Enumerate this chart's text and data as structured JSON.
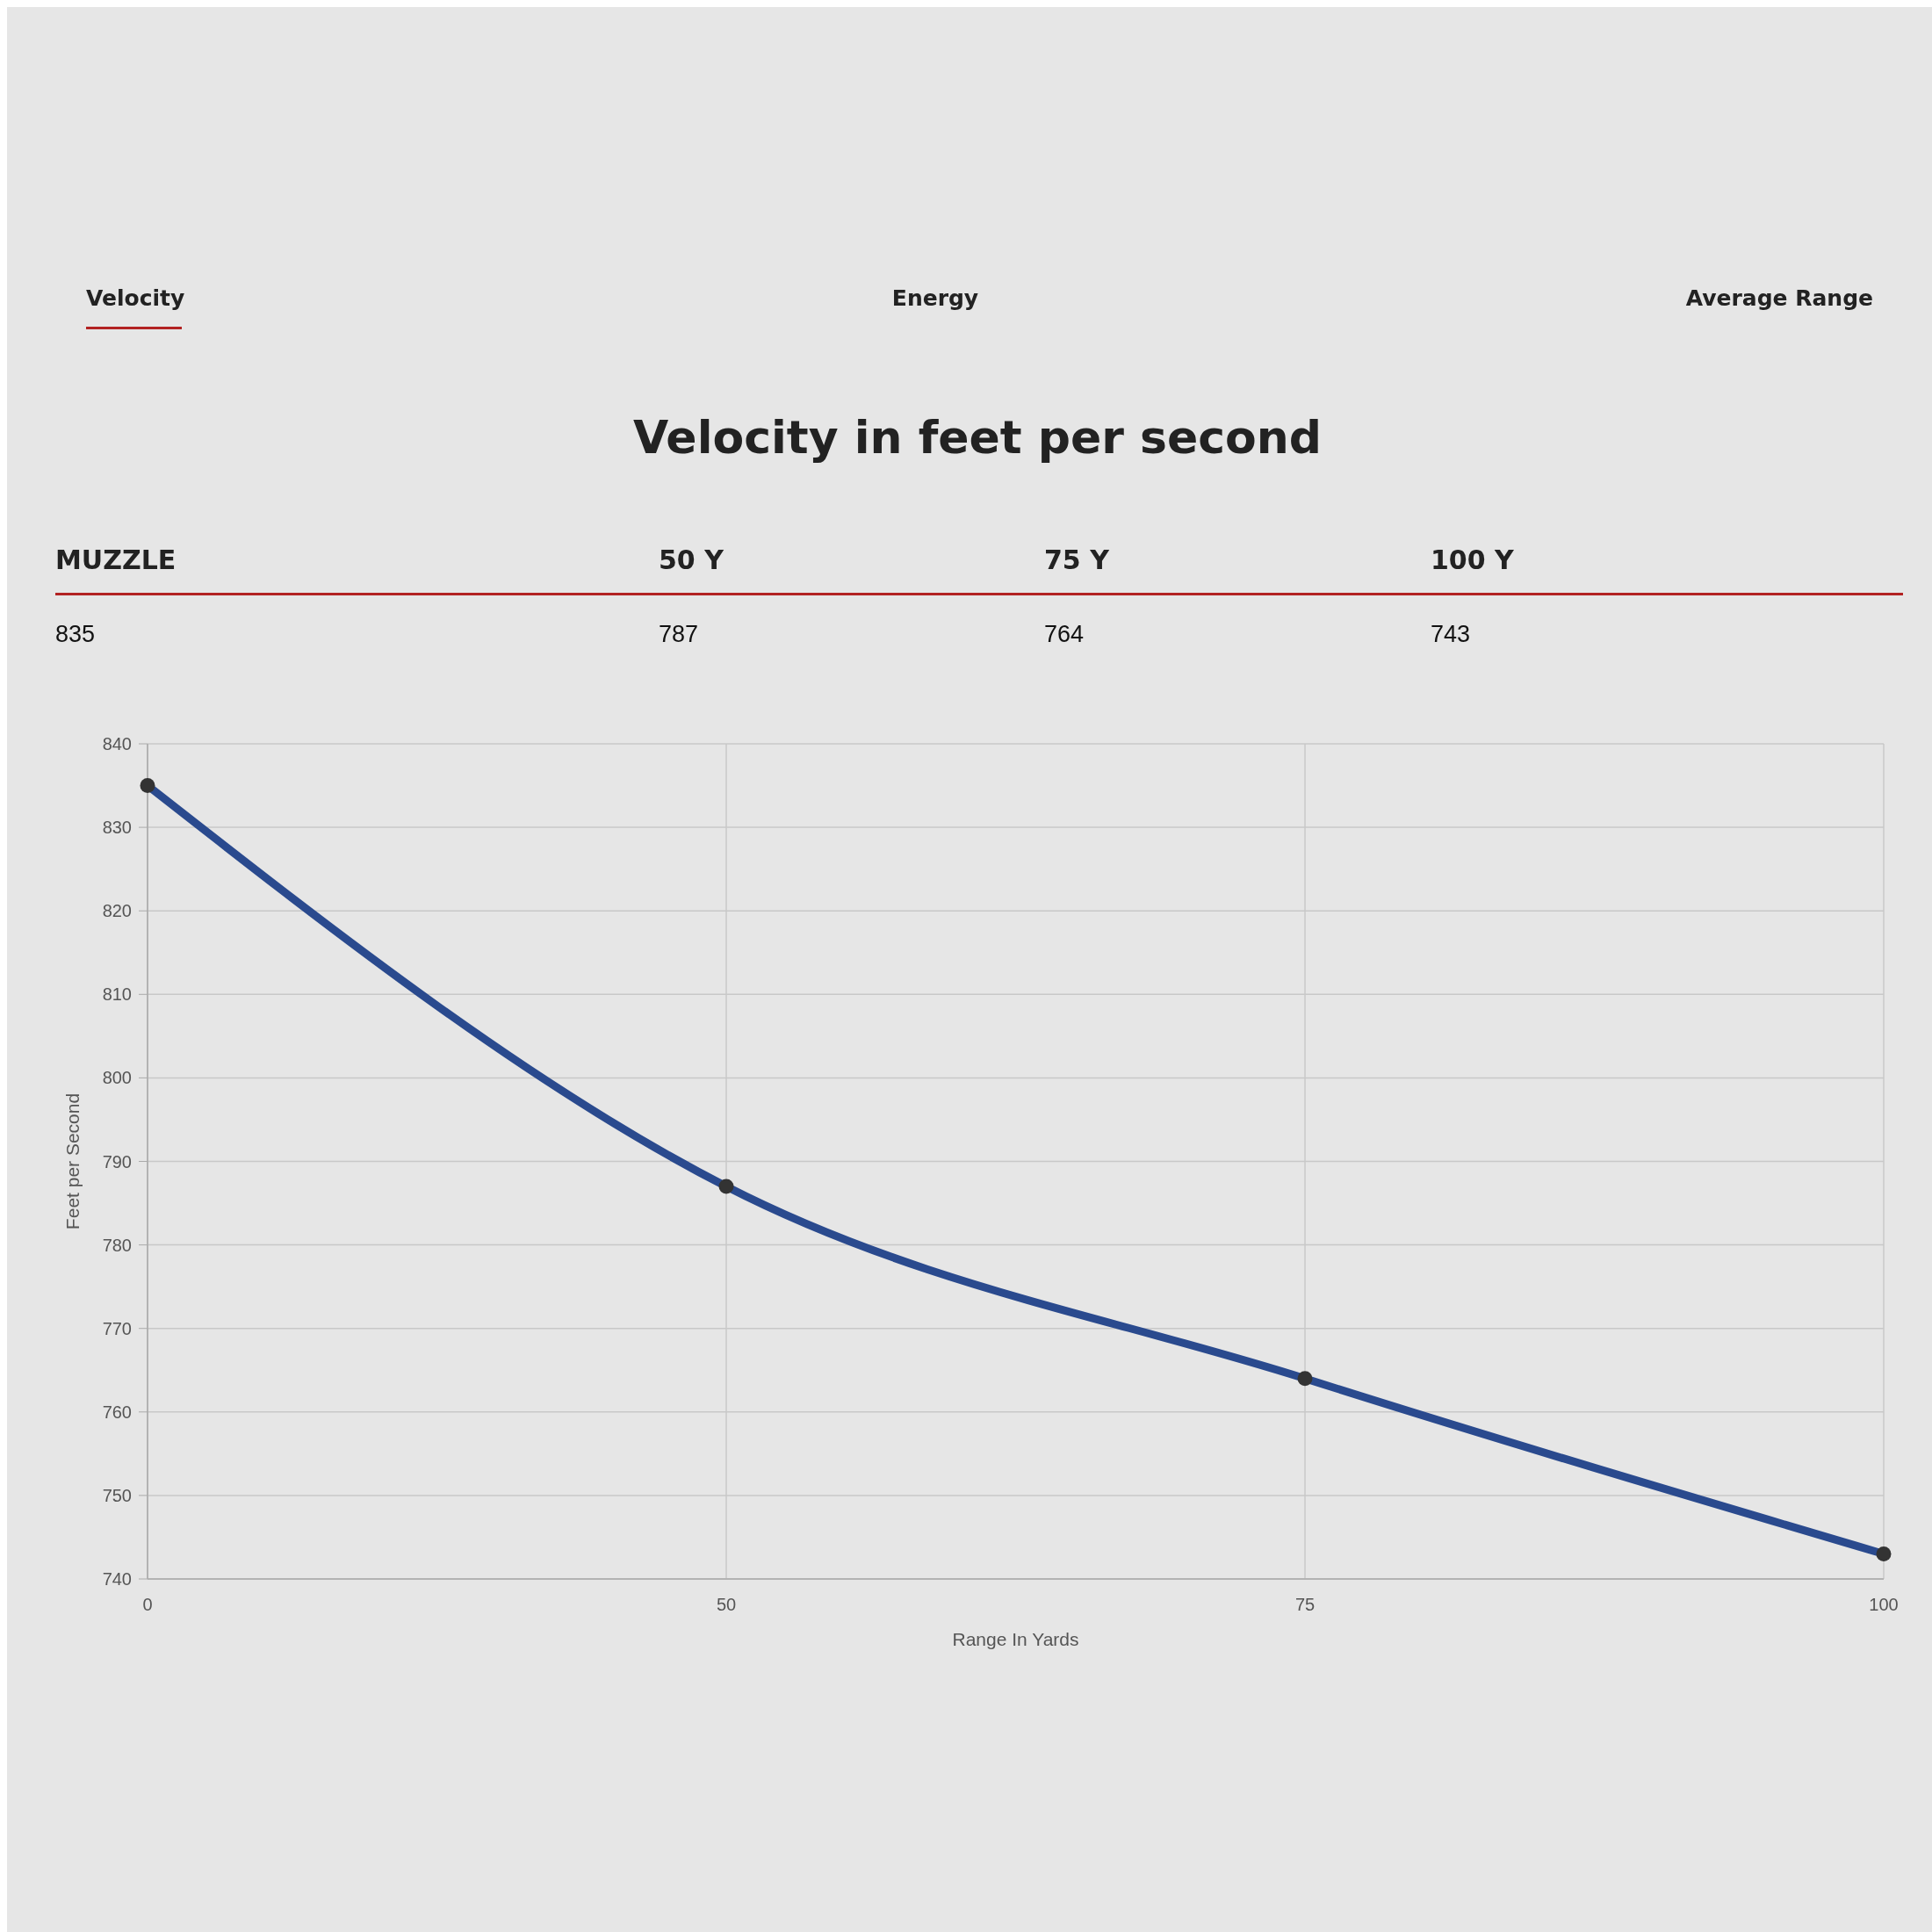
{
  "chart_data": {
    "type": "line",
    "title": "Velocity in feet per second",
    "xlabel": "Range In Yards",
    "ylabel": "Feet per Second",
    "annotations": [
      "Velocity",
      "Energy",
      "Average Range",
      "MUZZLE",
      "50 Y",
      "75 Y",
      "100 Y",
      "835",
      "787",
      "764",
      "743"
    ],
    "categories": [
      "0",
      "50",
      "75",
      "100"
    ],
    "series": [
      {
        "color": "#2a4a8e",
        "values": [
          835,
          787,
          764,
          743
        ]
      }
    ],
    "ylim": [
      740,
      840
    ],
    "yticks": [
      740,
      750,
      760,
      770,
      780,
      790,
      800,
      810,
      820,
      830,
      840
    ],
    "grid": true,
    "marker": "circle",
    "line_style": "solid"
  }
}
